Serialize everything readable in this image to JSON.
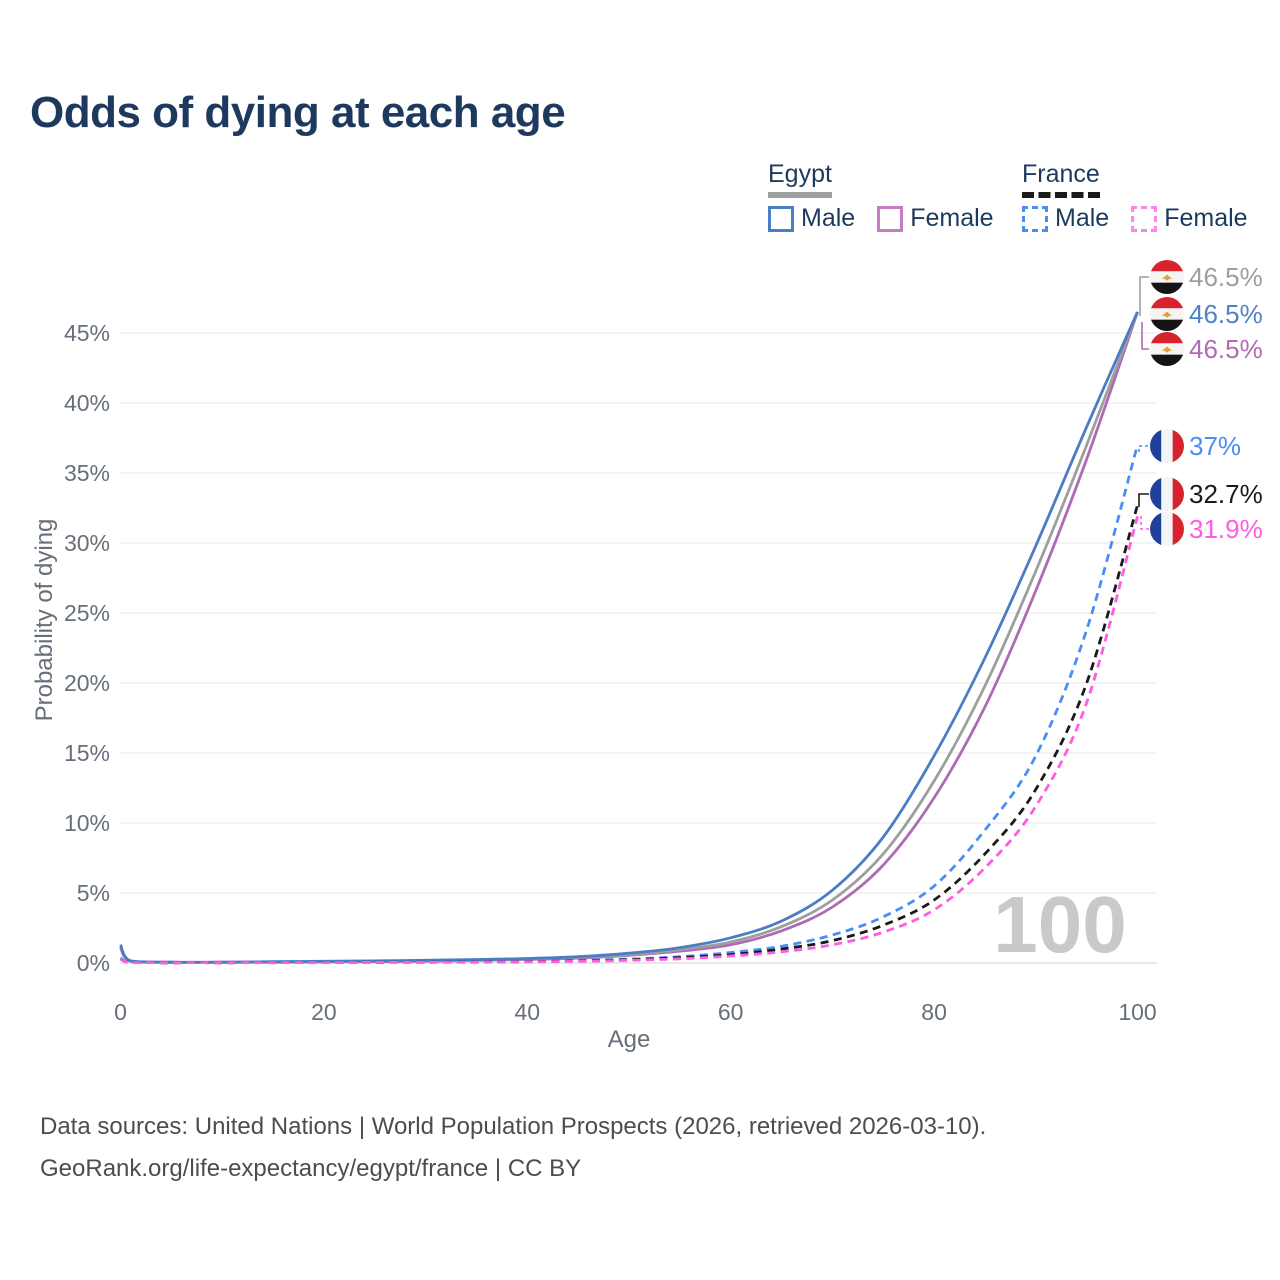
{
  "title": "Odds of dying at each age",
  "legend": {
    "groups": [
      {
        "country": "Egypt",
        "style": "solid",
        "underline_color": "#9e9e9e",
        "items": [
          {
            "label": "Male",
            "color": "#4b7cc4"
          },
          {
            "label": "Female",
            "color": "#c47fc4"
          }
        ]
      },
      {
        "country": "France",
        "style": "dashed",
        "underline_color": "#1a1a1a",
        "items": [
          {
            "label": "Male",
            "color": "#4a8df5"
          },
          {
            "label": "Female",
            "color": "#ff85ec"
          }
        ]
      }
    ]
  },
  "axes": {
    "x": {
      "label": "Age",
      "ticks": [
        0,
        20,
        40,
        60,
        80,
        100
      ]
    },
    "y": {
      "label": "Probability of dying",
      "ticks": [
        "0%",
        "5%",
        "10%",
        "15%",
        "20%",
        "25%",
        "30%",
        "35%",
        "40%",
        "45%"
      ]
    }
  },
  "watermark_age": "100",
  "end_labels": [
    {
      "series": "egypt-total",
      "flag": "egypt",
      "text": "46.5%",
      "color": "#9e9e9e"
    },
    {
      "series": "egypt-male",
      "flag": "egypt",
      "text": "46.5%",
      "color": "#5083c6"
    },
    {
      "series": "egypt-female",
      "flag": "egypt",
      "text": "46.5%",
      "color": "#b26bb2"
    },
    {
      "series": "france-male",
      "flag": "france",
      "text": "37%",
      "color": "#4a8df5"
    },
    {
      "series": "france-total",
      "flag": "france",
      "text": "32.7%",
      "color": "#1a1a1a"
    },
    {
      "series": "france-female",
      "flag": "france",
      "text": "31.9%",
      "color": "#ff5ce0"
    }
  ],
  "footer": {
    "line1": "Data sources: United Nations | World Population Prospects (2026, retrieved 2026-03-10).",
    "line2": "GeoRank.org/life-expectancy/egypt/france | CC BY"
  },
  "chart_data": {
    "type": "line",
    "title": "Odds of dying at each age",
    "xlabel": "Age",
    "ylabel": "Probability of dying",
    "xlim": [
      0,
      100
    ],
    "ylim_percent": [
      0,
      48
    ],
    "grid": "horizontal",
    "legend_position": "top-right",
    "x": [
      0,
      1,
      5,
      10,
      15,
      20,
      25,
      30,
      35,
      40,
      45,
      50,
      55,
      60,
      65,
      70,
      75,
      80,
      85,
      90,
      95,
      100
    ],
    "unit": "percent",
    "series": [
      {
        "id": "egypt-male",
        "name": "Egypt Male",
        "country": "Egypt",
        "sex": "Male",
        "style": "solid",
        "color": "#4b7cc4",
        "values": [
          1.3,
          0.15,
          0.06,
          0.06,
          0.09,
          0.12,
          0.15,
          0.19,
          0.25,
          0.32,
          0.45,
          0.7,
          1.1,
          1.8,
          3.0,
          5.2,
          9.0,
          14.8,
          21.8,
          29.8,
          38.3,
          46.5
        ]
      },
      {
        "id": "egypt-total",
        "name": "Egypt Both sexes",
        "country": "Egypt",
        "sex": "Both",
        "style": "solid",
        "color": "#9e9e9e",
        "values": [
          1.2,
          0.13,
          0.05,
          0.05,
          0.08,
          0.1,
          0.13,
          0.16,
          0.21,
          0.28,
          0.4,
          0.6,
          0.95,
          1.5,
          2.6,
          4.5,
          7.8,
          13.0,
          19.8,
          28.0,
          37.0,
          46.5
        ]
      },
      {
        "id": "egypt-female",
        "name": "Egypt Female",
        "country": "Egypt",
        "sex": "Female",
        "style": "solid",
        "color": "#ae6bb5",
        "values": [
          1.1,
          0.12,
          0.05,
          0.05,
          0.06,
          0.08,
          0.1,
          0.13,
          0.18,
          0.25,
          0.35,
          0.55,
          0.85,
          1.3,
          2.3,
          4.0,
          7.0,
          11.8,
          18.3,
          26.6,
          36.0,
          46.5
        ]
      },
      {
        "id": "france-male",
        "name": "France Male",
        "country": "France",
        "sex": "Male",
        "style": "dashed",
        "color": "#4a8df5",
        "values": [
          0.35,
          0.03,
          0.01,
          0.01,
          0.03,
          0.05,
          0.06,
          0.07,
          0.09,
          0.12,
          0.18,
          0.28,
          0.45,
          0.75,
          1.2,
          2.0,
          3.3,
          5.5,
          9.5,
          14.8,
          23.8,
          37.0
        ]
      },
      {
        "id": "france-total",
        "name": "France Both sexes",
        "country": "France",
        "sex": "Both",
        "style": "dashed",
        "color": "#1a1a1a",
        "values": [
          0.3,
          0.03,
          0.01,
          0.01,
          0.02,
          0.04,
          0.05,
          0.06,
          0.08,
          0.1,
          0.15,
          0.23,
          0.38,
          0.6,
          1.0,
          1.6,
          2.7,
          4.5,
          7.8,
          12.4,
          20.0,
          32.7
        ]
      },
      {
        "id": "france-female",
        "name": "France Female",
        "country": "France",
        "sex": "Female",
        "style": "dashed",
        "color": "#ff5ce0",
        "values": [
          0.3,
          0.02,
          0.01,
          0.01,
          0.02,
          0.03,
          0.04,
          0.05,
          0.06,
          0.08,
          0.12,
          0.19,
          0.3,
          0.5,
          0.8,
          1.3,
          2.2,
          3.8,
          6.8,
          11.2,
          18.6,
          31.9
        ]
      }
    ],
    "end_values": {
      "egypt_male": 46.5,
      "egypt_total": 46.5,
      "egypt_female": 46.5,
      "france_male": 37.0,
      "france_total": 32.7,
      "france_female": 31.9
    }
  }
}
